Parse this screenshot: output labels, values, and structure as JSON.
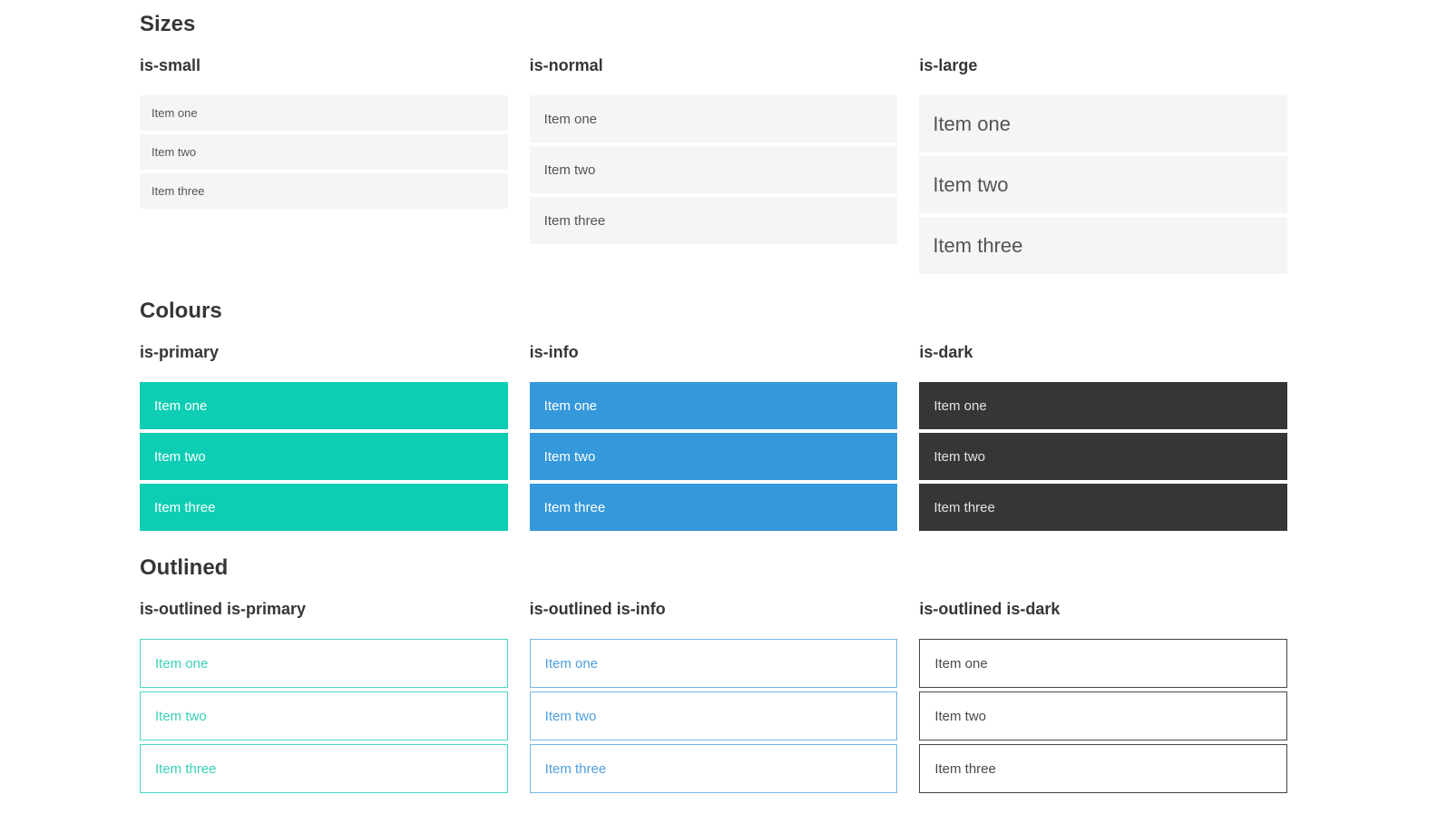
{
  "colors": {
    "primary": "#0dceb4",
    "info": "#3598db",
    "dark": "#363636",
    "item_background": "#f5f5f5",
    "item_text": "#545454",
    "filled_text": "#ffffff",
    "outlined_primary": "#3ad0b6",
    "outlined_info": "#4d9fdd",
    "outlined_dark": "#4a4a4a",
    "heading_text": "#363636"
  },
  "sections": {
    "sizes": {
      "title": "Sizes",
      "groups": {
        "small": {
          "label": "is-small",
          "items": [
            "Item one",
            "Item two",
            "Item three"
          ]
        },
        "normal": {
          "label": "is-normal",
          "items": [
            "Item one",
            "Item two",
            "Item three"
          ]
        },
        "large": {
          "label": "is-large",
          "items": [
            "Item one",
            "Item two",
            "Item three"
          ]
        }
      }
    },
    "colours": {
      "title": "Colours",
      "groups": {
        "primary": {
          "label": "is-primary",
          "items": [
            "Item one",
            "Item two",
            "Item three"
          ]
        },
        "info": {
          "label": "is-info",
          "items": [
            "Item one",
            "Item two",
            "Item three"
          ]
        },
        "dark": {
          "label": "is-dark",
          "items": [
            "Item one",
            "Item two",
            "Item three"
          ]
        }
      }
    },
    "outlined": {
      "title": "Outlined",
      "groups": {
        "primary": {
          "label": "is-outlined is-primary",
          "items": [
            "Item one",
            "Item two",
            "Item three"
          ]
        },
        "info": {
          "label": "is-outlined is-info",
          "items": [
            "Item one",
            "Item two",
            "Item three"
          ]
        },
        "dark": {
          "label": "is-outlined is-dark",
          "items": [
            "Item one",
            "Item two",
            "Item three"
          ]
        }
      }
    }
  }
}
